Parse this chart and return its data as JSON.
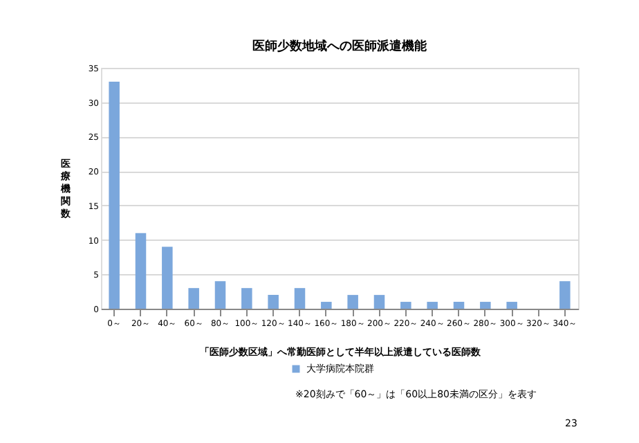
{
  "chart_data": {
    "type": "bar",
    "title": "医師少数地域への医師派遣機能",
    "xlabel": "「医師少数区域」へ常勤医師として半年以上派遣している医師数",
    "ylabel": "医療機関数",
    "categories": [
      "0～",
      "20～",
      "40～",
      "60～",
      "80～",
      "100～",
      "120～",
      "140～",
      "160～",
      "180～",
      "200～",
      "220～",
      "240～",
      "260～",
      "280～",
      "300～",
      "320～",
      "340～"
    ],
    "series": [
      {
        "name": "大学病院本院群",
        "color": "#7ba7dc",
        "values": [
          33,
          11,
          9,
          3,
          4,
          3,
          2,
          3,
          1,
          2,
          2,
          1,
          1,
          1,
          1,
          1,
          0,
          4
        ]
      }
    ],
    "ylim": [
      0,
      35
    ],
    "yticks": [
      0,
      5,
      10,
      15,
      20,
      25,
      30,
      35
    ],
    "grid": "y",
    "legend": "bottom",
    "annotations": [
      "※20刻みで「60～」は「60以上80未満の区分」を表す",
      "23"
    ]
  }
}
